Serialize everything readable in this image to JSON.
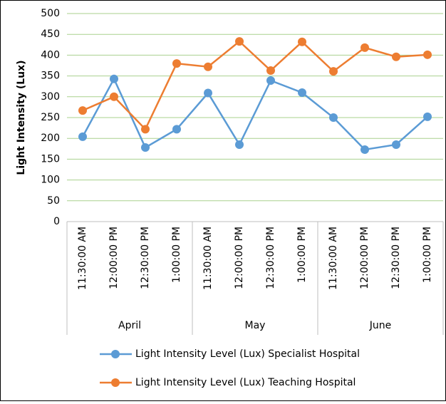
{
  "chart_data": {
    "type": "line",
    "y_axis_label": "Light Intensity (Lux)",
    "categories": [
      "11:30:00 AM",
      "12:00:00 PM",
      "12:30:00 PM",
      "1:00:00 PM",
      "11:30:00 AM",
      "12:00:00 PM",
      "12:30:00 PM",
      "1:00:00 PM",
      "11:30:00 AM",
      "12:00:00 PM",
      "12:30:00 PM",
      "1:00:00 PM"
    ],
    "groups": [
      "April",
      "May",
      "June"
    ],
    "series": [
      {
        "name": "Light Intensity Level (Lux) Specialist Hospital",
        "color": "#5b9bd5",
        "values": [
          204,
          343,
          178,
          222,
          309,
          185,
          339,
          310,
          250,
          173,
          185,
          252
        ]
      },
      {
        "name": "Light Intensity Level (Lux) Teaching Hospital",
        "color": "#ed7d31",
        "values": [
          267,
          300,
          222,
          380,
          372,
          433,
          363,
          432,
          361,
          418,
          396,
          401
        ]
      }
    ],
    "ylim": [
      0,
      500
    ],
    "yticks": [
      0,
      50,
      100,
      150,
      200,
      250,
      300,
      350,
      400,
      450,
      500
    ],
    "grid": true,
    "legend": "bottom"
  }
}
